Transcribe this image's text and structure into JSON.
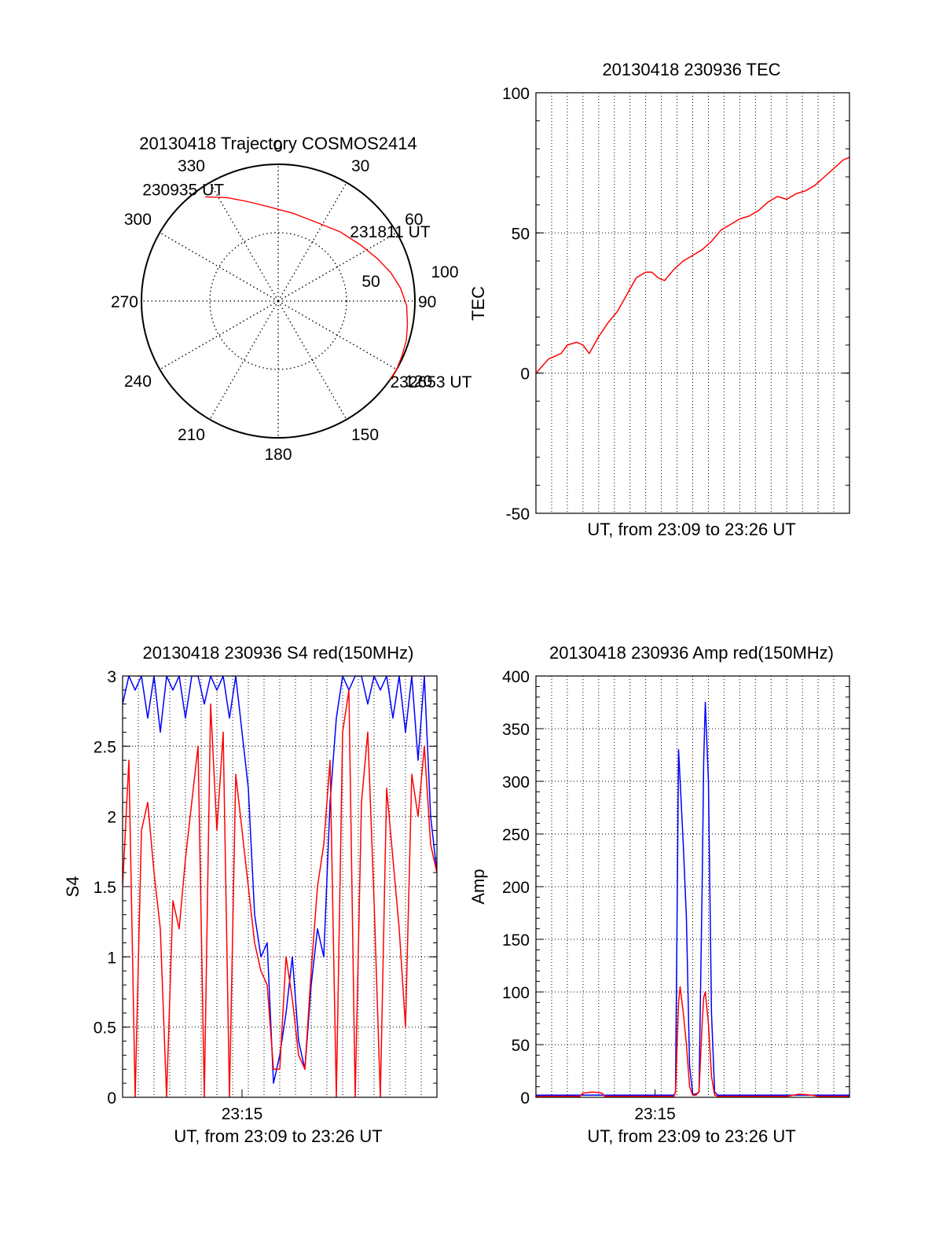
{
  "colors": {
    "red": "#ff0000",
    "blue": "#0000ff",
    "axis": "#000000",
    "grid": "#000000",
    "background": "#ffffff"
  },
  "chart_data": [
    {
      "id": "trajectory",
      "type": "scatter",
      "polar": true,
      "title": "20130418 Trajectory COSMOS2414",
      "angle_labels": [
        "0",
        "30",
        "60",
        "90",
        "120",
        "150",
        "180",
        "210",
        "240",
        "270",
        "300",
        "330"
      ],
      "radial_labels": [
        "50",
        "100"
      ],
      "rmax": 100,
      "grid": true,
      "series": [
        {
          "color": "red",
          "points": [
            {
              "az": 325,
              "r": 93
            },
            {
              "az": 334,
              "r": 84
            },
            {
              "az": 343,
              "r": 76
            },
            {
              "az": 355,
              "r": 69
            },
            {
              "az": 10,
              "r": 65
            },
            {
              "az": 26,
              "r": 64
            },
            {
              "az": 42,
              "r": 68
            },
            {
              "az": 56,
              "r": 73
            },
            {
              "az": 67,
              "r": 79
            },
            {
              "az": 76,
              "r": 85
            },
            {
              "az": 84,
              "r": 90
            },
            {
              "az": 92,
              "r": 94
            },
            {
              "az": 100,
              "r": 96
            },
            {
              "az": 107,
              "r": 98
            },
            {
              "az": 114,
              "r": 99
            },
            {
              "az": 120,
              "r": 100
            },
            {
              "az": 125,
              "r": 100
            }
          ]
        }
      ],
      "annotations": [
        {
          "text": "230935 UT",
          "az": 325,
          "r": 93
        },
        {
          "text": "231811 UT",
          "az": 56,
          "r": 73
        },
        {
          "text": "232653 UT",
          "az": 125,
          "r": 100
        }
      ]
    },
    {
      "id": "tec",
      "type": "line",
      "title": "20130418 230936 TEC",
      "xlabel": "UT, from 23:09 to 23:26 UT",
      "ylabel": "TEC",
      "ylim": [
        -50,
        100
      ],
      "yticks": [
        -50,
        0,
        50,
        100
      ],
      "xlim": [
        0,
        1
      ],
      "grid": true,
      "series": [
        {
          "color": "red",
          "x": [
            0.0,
            0.04,
            0.08,
            0.1,
            0.13,
            0.15,
            0.17,
            0.2,
            0.23,
            0.26,
            0.29,
            0.32,
            0.35,
            0.37,
            0.39,
            0.41,
            0.44,
            0.47,
            0.5,
            0.53,
            0.56,
            0.59,
            0.62,
            0.65,
            0.68,
            0.71,
            0.74,
            0.77,
            0.8,
            0.83,
            0.86,
            0.89,
            0.92,
            0.95,
            0.98,
            1.0
          ],
          "values": [
            0,
            5,
            7,
            10,
            11,
            10,
            7,
            13,
            18,
            22,
            28,
            34,
            36,
            36,
            34,
            33,
            37,
            40,
            42,
            44,
            47,
            51,
            53,
            55,
            56,
            58,
            61,
            63,
            62,
            64,
            65,
            67,
            70,
            73,
            76,
            77
          ]
        }
      ]
    },
    {
      "id": "s4",
      "type": "line",
      "title": "20130418 230936 S4 red(150MHz)",
      "xlabel": "UT, from 23:09 to 23:26 UT",
      "ylabel": "S4",
      "ylim": [
        0,
        3
      ],
      "yticks": [
        0,
        0.5,
        1,
        1.5,
        2,
        2.5,
        3
      ],
      "xlim": [
        0,
        1
      ],
      "xticks": [
        {
          "x": 0.38,
          "label": "23:15"
        }
      ],
      "grid": true,
      "series": [
        {
          "color": "blue",
          "x": [
            0.0,
            0.02,
            0.04,
            0.06,
            0.08,
            0.1,
            0.12,
            0.14,
            0.16,
            0.18,
            0.2,
            0.22,
            0.24,
            0.26,
            0.28,
            0.3,
            0.32,
            0.34,
            0.36,
            0.38,
            0.4,
            0.42,
            0.44,
            0.46,
            0.48,
            0.5,
            0.52,
            0.54,
            0.56,
            0.58,
            0.6,
            0.62,
            0.64,
            0.66,
            0.68,
            0.7,
            0.72,
            0.74,
            0.76,
            0.78,
            0.8,
            0.82,
            0.84,
            0.86,
            0.88,
            0.9,
            0.92,
            0.94,
            0.96,
            0.98,
            1.0
          ],
          "values": [
            2.8,
            3.0,
            2.9,
            3.0,
            2.7,
            3.0,
            2.6,
            3.0,
            2.9,
            3.0,
            2.7,
            3.0,
            3.0,
            2.8,
            3.0,
            2.9,
            3.0,
            2.7,
            3.0,
            2.6,
            2.2,
            1.3,
            1.0,
            1.1,
            0.1,
            0.3,
            0.6,
            1.0,
            0.4,
            0.2,
            0.8,
            1.2,
            1.0,
            2.1,
            2.7,
            3.0,
            2.9,
            3.0,
            3.0,
            2.8,
            3.0,
            2.9,
            3.0,
            2.7,
            3.0,
            2.6,
            3.0,
            2.4,
            3.0,
            2.0,
            1.6
          ]
        },
        {
          "color": "red",
          "x": [
            0.0,
            0.02,
            0.04,
            0.06,
            0.08,
            0.1,
            0.12,
            0.14,
            0.16,
            0.18,
            0.2,
            0.22,
            0.24,
            0.26,
            0.28,
            0.3,
            0.32,
            0.34,
            0.36,
            0.38,
            0.4,
            0.42,
            0.44,
            0.46,
            0.48,
            0.5,
            0.52,
            0.54,
            0.56,
            0.58,
            0.6,
            0.62,
            0.64,
            0.66,
            0.68,
            0.7,
            0.72,
            0.74,
            0.76,
            0.78,
            0.8,
            0.82,
            0.84,
            0.86,
            0.88,
            0.9,
            0.92,
            0.94,
            0.96,
            0.98,
            1.0
          ],
          "values": [
            1.5,
            2.4,
            0.0,
            1.9,
            2.1,
            1.6,
            1.2,
            0.0,
            1.4,
            1.2,
            1.7,
            2.1,
            2.5,
            0.0,
            2.8,
            1.9,
            2.6,
            0.0,
            2.3,
            1.9,
            1.5,
            1.1,
            0.9,
            0.8,
            0.2,
            0.2,
            1.0,
            0.7,
            0.3,
            0.2,
            0.9,
            1.5,
            1.8,
            2.4,
            0.0,
            2.6,
            2.9,
            0.0,
            2.1,
            2.6,
            1.4,
            0.0,
            2.2,
            1.7,
            1.2,
            0.5,
            2.3,
            2.0,
            2.5,
            1.8,
            1.6
          ]
        }
      ]
    },
    {
      "id": "amp",
      "type": "line",
      "title": "20130418 230936 Amp red(150MHz)",
      "xlabel": "UT, from 23:09 to 23:26 UT",
      "ylabel": "Amp",
      "ylim": [
        0,
        400
      ],
      "yticks": [
        0,
        50,
        100,
        150,
        200,
        250,
        300,
        350,
        400
      ],
      "xlim": [
        0,
        1
      ],
      "xticks": [
        {
          "x": 0.38,
          "label": "23:15"
        }
      ],
      "grid": true,
      "series": [
        {
          "color": "blue",
          "x": [
            0.0,
            0.1,
            0.2,
            0.3,
            0.4,
            0.44,
            0.445,
            0.455,
            0.46,
            0.47,
            0.48,
            0.49,
            0.5,
            0.51,
            0.52,
            0.53,
            0.535,
            0.54,
            0.55,
            0.56,
            0.57,
            0.58,
            0.6,
            0.7,
            0.8,
            0.9,
            1.0
          ],
          "values": [
            2,
            2,
            2,
            2,
            2,
            2,
            5,
            330,
            300,
            240,
            170,
            30,
            3,
            3,
            5,
            200,
            320,
            375,
            300,
            80,
            5,
            2,
            2,
            2,
            2,
            2,
            2
          ]
        },
        {
          "color": "red",
          "x": [
            0.0,
            0.14,
            0.15,
            0.18,
            0.21,
            0.22,
            0.44,
            0.445,
            0.455,
            0.46,
            0.47,
            0.48,
            0.49,
            0.5,
            0.51,
            0.52,
            0.53,
            0.535,
            0.54,
            0.55,
            0.56,
            0.57,
            0.58,
            0.8,
            0.84,
            0.88,
            0.9,
            1.0
          ],
          "values": [
            1,
            1,
            4,
            5,
            4,
            1,
            1,
            5,
            90,
            105,
            80,
            50,
            10,
            2,
            2,
            5,
            70,
            95,
            100,
            70,
            20,
            2,
            1,
            1,
            3,
            2,
            1,
            1
          ]
        }
      ]
    }
  ]
}
